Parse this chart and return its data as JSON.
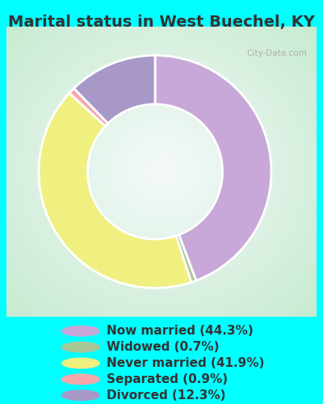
{
  "title": "Marital status in West Buechel, KY",
  "background_color": "#00FFFF",
  "chart_bg_color": "#c8e8d0",
  "slices": [
    {
      "label": "Now married (44.3%)",
      "value": 44.3,
      "color": "#c8a8d8"
    },
    {
      "label": "Widowed (0.7%)",
      "value": 0.7,
      "color": "#a8c898"
    },
    {
      "label": "Never married (41.9%)",
      "value": 41.9,
      "color": "#f0f080"
    },
    {
      "label": "Separated (0.9%)",
      "value": 0.9,
      "color": "#f8a8a8"
    },
    {
      "label": "Divorced (12.3%)",
      "value": 12.3,
      "color": "#a898c8"
    }
  ],
  "legend_colors": [
    "#c8a8d8",
    "#a8c898",
    "#f0f080",
    "#f8a8a8",
    "#a898c8"
  ],
  "legend_labels": [
    "Now married (44.3%)",
    "Widowed (0.7%)",
    "Never married (41.9%)",
    "Separated (0.9%)",
    "Divorced (12.3%)"
  ],
  "title_fontsize": 14,
  "legend_fontsize": 11,
  "text_color": "#333333",
  "donut_width": 0.42,
  "watermark": "City-Data.com"
}
